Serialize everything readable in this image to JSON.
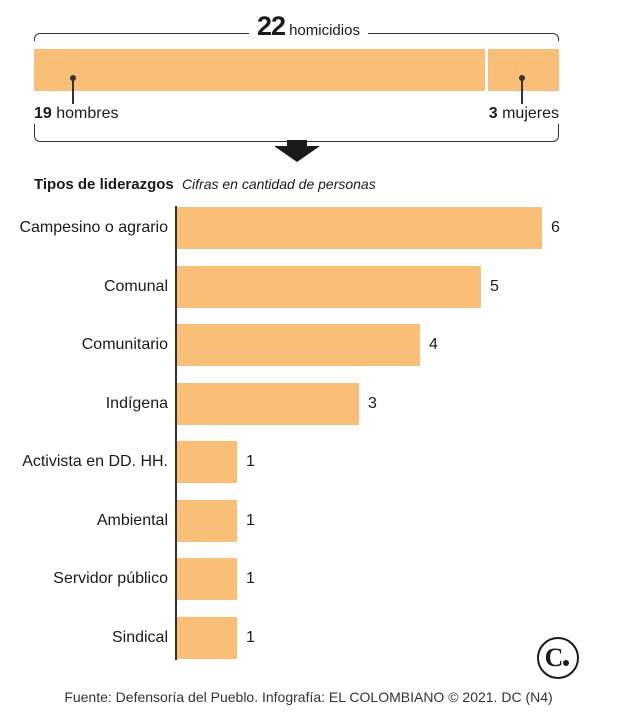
{
  "summary": {
    "total_value": "22",
    "total_label": "homicidios",
    "men_value": "19",
    "men_label": "hombres",
    "women_value": "3",
    "women_label": "mujeres",
    "men_count": 19,
    "women_count": 3,
    "color": "#f9bf78"
  },
  "section": {
    "title": "Tipos de liderazgos",
    "subtitle": "Cifras en cantidad de personas"
  },
  "chart_data": {
    "type": "bar",
    "orientation": "horizontal",
    "categories": [
      "Campesino o agrario",
      "Comunal",
      "Comunitario",
      "Indígena",
      "Activista en DD. HH.",
      "Ambiental",
      "Servidor público",
      "Sindical"
    ],
    "values": [
      6,
      5,
      4,
      3,
      1,
      1,
      1,
      1
    ],
    "xlim": [
      0,
      6
    ],
    "grid": false,
    "bar_color": "#f9bf78"
  },
  "footer": {
    "source": "Fuente: Defensoría del Pueblo. Infografía: EL COLOMBIANO © 2021. DC (N4)"
  },
  "logo": {
    "icon": "el-colombiano-logo",
    "letter": "C"
  }
}
